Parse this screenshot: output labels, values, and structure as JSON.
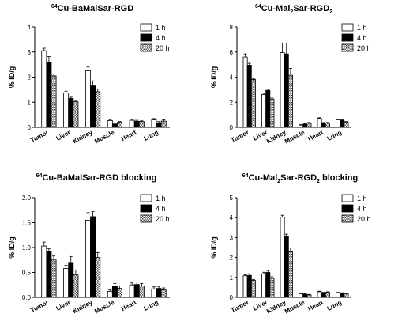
{
  "chart_data": [
    {
      "type": "bar",
      "title_parts": [
        {
          "t": "64",
          "s": "sup"
        },
        {
          "t": "Cu-BaMalSar-RGD",
          "s": ""
        }
      ],
      "ylabel": "% ID/g",
      "ylim": [
        0,
        4
      ],
      "yticks": [
        "0",
        "1",
        "2",
        "3",
        "4"
      ],
      "categories": [
        "Tumor",
        "Liver",
        "Kidney",
        "Muscle",
        "Heart",
        "Lung"
      ],
      "series": [
        {
          "name": "1 h",
          "values": [
            3.05,
            1.37,
            2.25,
            0.27,
            0.28,
            0.3
          ],
          "errors": [
            0.1,
            0.07,
            0.15,
            0.04,
            0.04,
            0.05
          ]
        },
        {
          "name": "4 h",
          "values": [
            2.6,
            1.15,
            1.65,
            0.13,
            0.24,
            0.18
          ],
          "errors": [
            0.22,
            0.05,
            0.2,
            0.03,
            0.04,
            0.05
          ]
        },
        {
          "name": "20 h",
          "values": [
            2.05,
            1.02,
            1.42,
            0.2,
            0.23,
            0.25
          ],
          "errors": [
            0.08,
            0.05,
            0.1,
            0.03,
            0.03,
            0.05
          ]
        }
      ]
    },
    {
      "type": "bar",
      "title_parts": [
        {
          "t": "64",
          "s": "sup"
        },
        {
          "t": "Cu-Mal",
          "s": ""
        },
        {
          "t": "2",
          "s": "sub"
        },
        {
          "t": "Sar-RGD",
          "s": ""
        },
        {
          "t": "2",
          "s": "sub"
        }
      ],
      "ylabel": "% ID/g",
      "ylim": [
        0,
        8
      ],
      "yticks": [
        "0",
        "2",
        "4",
        "6",
        "8"
      ],
      "categories": [
        "Tumor",
        "Liver",
        "Kidney",
        "Muscle",
        "Heart",
        "Lung"
      ],
      "series": [
        {
          "name": "1 h",
          "values": [
            5.6,
            2.62,
            5.95,
            0.18,
            0.72,
            0.6
          ],
          "errors": [
            0.25,
            0.1,
            0.75,
            0.04,
            0.05,
            0.05
          ]
        },
        {
          "name": "4 h",
          "values": [
            4.95,
            2.95,
            5.85,
            0.25,
            0.33,
            0.55
          ],
          "errors": [
            0.15,
            0.1,
            0.85,
            0.04,
            0.05,
            0.05
          ]
        },
        {
          "name": "20 h",
          "values": [
            3.82,
            2.25,
            4.15,
            0.35,
            0.35,
            0.42
          ],
          "errors": [
            0.08,
            0.08,
            0.55,
            0.04,
            0.04,
            0.04
          ]
        }
      ]
    },
    {
      "type": "bar",
      "title_parts": [
        {
          "t": "64",
          "s": "sup"
        },
        {
          "t": "Cu-BaMalSar-RGD blocking",
          "s": ""
        }
      ],
      "ylabel": "% ID/g",
      "ylim": [
        0,
        2
      ],
      "yticks": [
        "0.0",
        "0.5",
        "1.0",
        "1.5",
        "2.0"
      ],
      "categories": [
        "Tumor",
        "Liver",
        "Kidney",
        "Muscle",
        "Heart",
        "Lung"
      ],
      "series": [
        {
          "name": "1 h",
          "values": [
            1.03,
            0.58,
            1.55,
            0.12,
            0.25,
            0.17
          ],
          "errors": [
            0.08,
            0.06,
            0.15,
            0.03,
            0.04,
            0.04
          ]
        },
        {
          "name": "4 h",
          "values": [
            0.93,
            0.7,
            1.62,
            0.22,
            0.26,
            0.18
          ],
          "errors": [
            0.05,
            0.12,
            0.1,
            0.06,
            0.05,
            0.04
          ]
        },
        {
          "name": "20 h",
          "values": [
            0.75,
            0.45,
            0.8,
            0.18,
            0.23,
            0.15
          ],
          "errors": [
            0.08,
            0.1,
            0.1,
            0.05,
            0.05,
            0.04
          ]
        }
      ]
    },
    {
      "type": "bar",
      "title_parts": [
        {
          "t": "64",
          "s": "sup"
        },
        {
          "t": "Cu-Mal",
          "s": ""
        },
        {
          "t": "2",
          "s": "sub"
        },
        {
          "t": "Sar-RGD",
          "s": ""
        },
        {
          "t": "2",
          "s": "sub"
        },
        {
          "t": " blocking",
          "s": ""
        }
      ],
      "ylabel": "% ID/g",
      "ylim": [
        0,
        5
      ],
      "yticks": [
        "0",
        "1",
        "2",
        "3",
        "4",
        "5"
      ],
      "categories": [
        "Tumor",
        "Liver",
        "Kidney",
        "Muscle",
        "Heart",
        "Lung"
      ],
      "series": [
        {
          "name": "1 h",
          "values": [
            1.08,
            1.18,
            4.02,
            0.18,
            0.28,
            0.22
          ],
          "errors": [
            0.05,
            0.08,
            0.1,
            0.03,
            0.03,
            0.03
          ]
        },
        {
          "name": "4 h",
          "values": [
            1.1,
            1.25,
            3.05,
            0.15,
            0.22,
            0.2
          ],
          "errors": [
            0.08,
            0.1,
            0.12,
            0.03,
            0.03,
            0.03
          ]
        },
        {
          "name": "20 h",
          "values": [
            0.85,
            0.95,
            2.28,
            0.12,
            0.25,
            0.18
          ],
          "errors": [
            0.05,
            0.08,
            0.2,
            0.03,
            0.03,
            0.03
          ]
        }
      ]
    }
  ]
}
